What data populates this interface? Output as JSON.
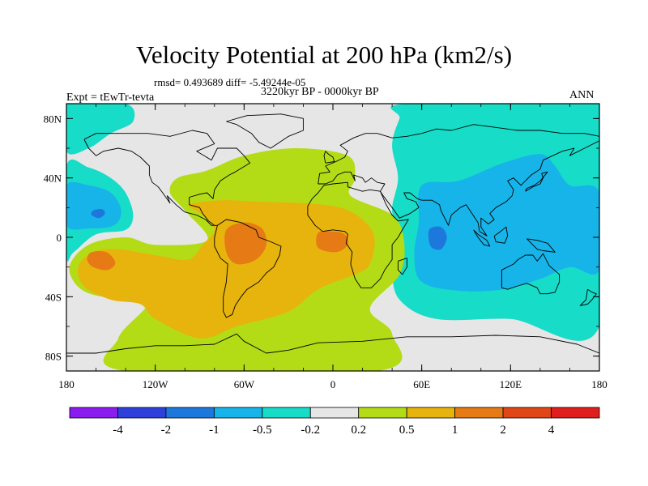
{
  "chart_data": {
    "type": "contour-map",
    "title": "Velocity Potential at 200 hPa (km2/s)",
    "stats": "rmsd= 0.493689 diff= -5.49244e-05",
    "period": "3220kyr BP - 0000kyr BP",
    "experiment": "Expt = tEwTr-tevta",
    "season": "ANN",
    "x_ticks": [
      "180",
      "120W",
      "60W",
      "0",
      "60E",
      "120E",
      "180"
    ],
    "y_ticks": [
      "80N",
      "40N",
      "0",
      "40S",
      "80S"
    ],
    "lon_range": [
      -180,
      180
    ],
    "lat_range": [
      -90,
      90
    ],
    "colorbar": {
      "labels": [
        "-4",
        "-2",
        "-1",
        "-0.5",
        "-0.2",
        "0.2",
        "0.5",
        "1",
        "2",
        "4"
      ],
      "colors": [
        "#8a1cf0",
        "#2e3fdc",
        "#1e78dc",
        "#16b4e8",
        "#16dcc8",
        "#e6e6e6",
        "#b4dc16",
        "#e6b40c",
        "#e67a14",
        "#e04616",
        "#e01e1e"
      ]
    },
    "fields": [
      {
        "name": "neg-0.2-atlantic-arctic",
        "color": "#16dcc8",
        "points": [
          [
            -180,
            90
          ],
          [
            -140,
            90
          ],
          [
            -135,
            78
          ],
          [
            -150,
            70
          ],
          [
            -165,
            60
          ],
          [
            -180,
            58
          ]
        ]
      },
      {
        "name": "neg-0.2-central-pacific",
        "color": "#16dcc8",
        "points": [
          [
            -180,
            48
          ],
          [
            -165,
            47
          ],
          [
            -150,
            40
          ],
          [
            -140,
            30
          ],
          [
            -135,
            15
          ],
          [
            -140,
            5
          ],
          [
            -160,
            2
          ],
          [
            -175,
            -10
          ],
          [
            -180,
            -12
          ]
        ]
      },
      {
        "name": "neg-0.5-central-pacific",
        "color": "#16b4e8",
        "points": [
          [
            -180,
            35
          ],
          [
            -165,
            35
          ],
          [
            -150,
            30
          ],
          [
            -143,
            18
          ],
          [
            -148,
            8
          ],
          [
            -165,
            6
          ],
          [
            -180,
            8
          ]
        ]
      },
      {
        "name": "neg-1-central-pacific",
        "color": "#1e78dc",
        "points": [
          [
            -162,
            18
          ],
          [
            -156,
            19
          ],
          [
            -154,
            16
          ],
          [
            -158,
            13
          ],
          [
            -163,
            15
          ]
        ]
      },
      {
        "name": "neg-0.2-eurasia-indopacific",
        "color": "#16dcc8",
        "points": [
          [
            50,
            90
          ],
          [
            180,
            90
          ],
          [
            180,
            -60
          ],
          [
            120,
            -55
          ],
          [
            70,
            -55
          ],
          [
            45,
            -42
          ],
          [
            40,
            -20
          ],
          [
            42,
            5
          ],
          [
            40,
            20
          ],
          [
            44,
            40
          ],
          [
            40,
            62
          ],
          [
            45,
            80
          ]
        ]
      },
      {
        "name": "neg-0.5-indopacific",
        "color": "#16b4e8",
        "points": [
          [
            60,
            35
          ],
          [
            85,
            38
          ],
          [
            115,
            50
          ],
          [
            140,
            56
          ],
          [
            150,
            48
          ],
          [
            160,
            35
          ],
          [
            180,
            30
          ],
          [
            180,
            -22
          ],
          [
            160,
            -20
          ],
          [
            140,
            -28
          ],
          [
            115,
            -35
          ],
          [
            85,
            -36
          ],
          [
            60,
            -30
          ],
          [
            55,
            -12
          ],
          [
            58,
            10
          ]
        ]
      },
      {
        "name": "neg-1-indian-ocean",
        "color": "#1e78dc",
        "points": [
          [
            65,
            5
          ],
          [
            73,
            7
          ],
          [
            77,
            0
          ],
          [
            73,
            -8
          ],
          [
            66,
            -6
          ]
        ]
      },
      {
        "name": "pos-0.2-atlantic-americas",
        "color": "#b4dc16",
        "points": [
          [
            -105,
            40
          ],
          [
            -85,
            45
          ],
          [
            -60,
            55
          ],
          [
            -25,
            60
          ],
          [
            10,
            55
          ],
          [
            15,
            40
          ],
          [
            12,
            28
          ],
          [
            40,
            15
          ],
          [
            48,
            -2
          ],
          [
            45,
            -25
          ],
          [
            25,
            -48
          ],
          [
            40,
            -65
          ],
          [
            30,
            -90
          ],
          [
            -140,
            -90
          ],
          [
            -145,
            -68
          ],
          [
            -125,
            -45
          ],
          [
            -130,
            -32
          ],
          [
            -150,
            -40
          ],
          [
            -170,
            -35
          ],
          [
            -178,
            -20
          ],
          [
            -165,
            -5
          ],
          [
            -140,
            0
          ],
          [
            -120,
            -5
          ],
          [
            -85,
            -2
          ],
          [
            -100,
            18
          ],
          [
            -110,
            30
          ]
        ]
      },
      {
        "name": "pos-0.5-atlantic-americas",
        "color": "#e6b40c",
        "points": [
          [
            -97,
            22
          ],
          [
            -75,
            25
          ],
          [
            -50,
            24
          ],
          [
            -20,
            23
          ],
          [
            5,
            20
          ],
          [
            20,
            12
          ],
          [
            28,
            0
          ],
          [
            25,
            -18
          ],
          [
            15,
            -25
          ],
          [
            -10,
            -35
          ],
          [
            -30,
            -50
          ],
          [
            -65,
            -60
          ],
          [
            -90,
            -68
          ],
          [
            -120,
            -55
          ],
          [
            -130,
            -45
          ],
          [
            -150,
            -42
          ],
          [
            -168,
            -33
          ],
          [
            -172,
            -20
          ],
          [
            -162,
            -10
          ],
          [
            -145,
            -8
          ],
          [
            -120,
            -12
          ],
          [
            -98,
            -15
          ],
          [
            -88,
            -5
          ],
          [
            -80,
            5
          ],
          [
            -88,
            15
          ]
        ]
      },
      {
        "name": "pos-1-south-america",
        "color": "#e67a14",
        "points": [
          [
            -72,
            5
          ],
          [
            -60,
            10
          ],
          [
            -48,
            6
          ],
          [
            -45,
            -5
          ],
          [
            -52,
            -15
          ],
          [
            -65,
            -18
          ],
          [
            -72,
            -10
          ]
        ]
      },
      {
        "name": "pos-1-equatorial-atlantic",
        "color": "#e67a14",
        "points": [
          [
            -10,
            3
          ],
          [
            0,
            4
          ],
          [
            8,
            2
          ],
          [
            10,
            -5
          ],
          [
            2,
            -10
          ],
          [
            -10,
            -7
          ]
        ]
      },
      {
        "name": "pos-1-south-pacific",
        "color": "#e67a14",
        "points": [
          [
            -163,
            -10
          ],
          [
            -153,
            -10
          ],
          [
            -147,
            -17
          ],
          [
            -152,
            -22
          ],
          [
            -162,
            -20
          ],
          [
            -166,
            -15
          ]
        ]
      }
    ]
  }
}
